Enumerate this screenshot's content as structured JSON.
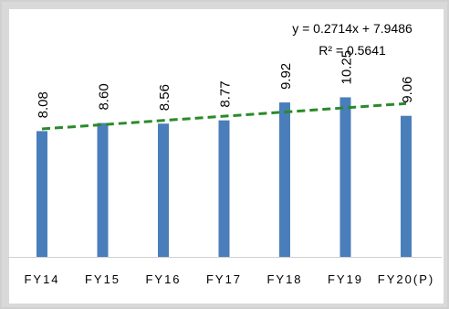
{
  "chart_data": {
    "type": "bar",
    "categories": [
      "FY14",
      "FY15",
      "FY16",
      "FY17",
      "FY18",
      "FY19",
      "FY20(P)"
    ],
    "values": [
      8.08,
      8.6,
      8.56,
      8.77,
      9.92,
      10.25,
      9.06
    ],
    "data_labels": [
      "8.08",
      "8.60",
      "8.56",
      "8.77",
      "9.92",
      "10.25",
      "9.06"
    ],
    "ylim": [
      0,
      16.5
    ],
    "grid": false,
    "bar_color": "#4a7ebb",
    "trendline": {
      "type": "linear",
      "slope": 0.2714,
      "intercept": 7.9486,
      "color": "#2a8a2a",
      "style": "dashed",
      "equation_text": "y = 0.2714x + 7.9486",
      "r2_text": "R² = 0.5641"
    }
  }
}
